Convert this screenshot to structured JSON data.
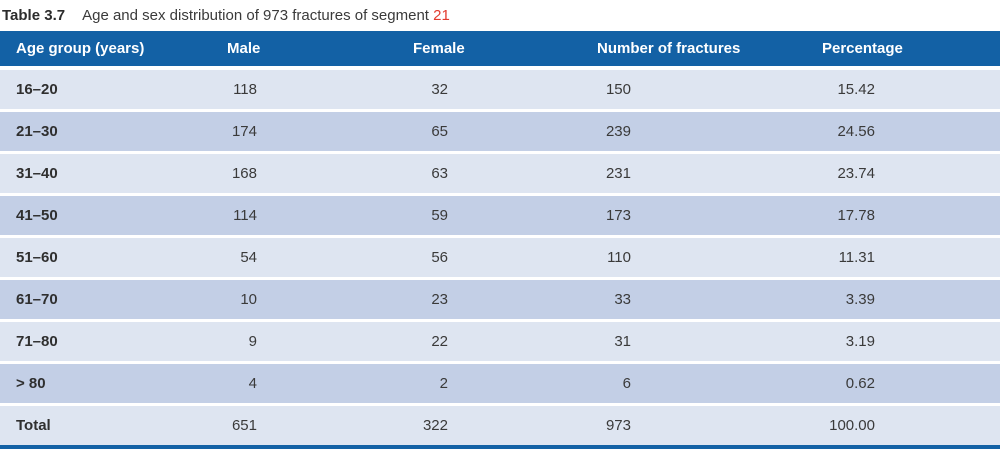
{
  "title": {
    "label": "Table 3.7",
    "text": "Age and sex distribution of 973 fractures of segment ",
    "segment_number": "21"
  },
  "table": {
    "columns": [
      "Age group (years)",
      "Male",
      "Female",
      "Number of fractures",
      "Percentage"
    ],
    "rows": [
      {
        "age": "16–20",
        "male": "118",
        "female": "32",
        "fractures": "150",
        "percentage": "15.42"
      },
      {
        "age": "21–30",
        "male": "174",
        "female": "65",
        "fractures": "239",
        "percentage": "24.56"
      },
      {
        "age": "31–40",
        "male": "168",
        "female": "63",
        "fractures": "231",
        "percentage": "23.74"
      },
      {
        "age": "41–50",
        "male": "114",
        "female": "59",
        "fractures": "173",
        "percentage": "17.78"
      },
      {
        "age": "51–60",
        "male": "54",
        "female": "56",
        "fractures": "110",
        "percentage": "11.31"
      },
      {
        "age": "61–70",
        "male": "10",
        "female": "23",
        "fractures": "33",
        "percentage": "3.39"
      },
      {
        "age": "71–80",
        "male": "9",
        "female": "22",
        "fractures": "31",
        "percentage": "3.19"
      },
      {
        "age": "> 80",
        "male": "4",
        "female": "2",
        "fractures": "6",
        "percentage": "0.62"
      },
      {
        "age": "Total",
        "male": "651",
        "female": "322",
        "fractures": "973",
        "percentage": "100.00"
      }
    ]
  },
  "colors": {
    "header_bg": "#1361a5",
    "row_light": "#dee5f1",
    "row_dark": "#c3cfe6",
    "segment_red": "#e23b2e",
    "text": "#3a3a3a"
  }
}
